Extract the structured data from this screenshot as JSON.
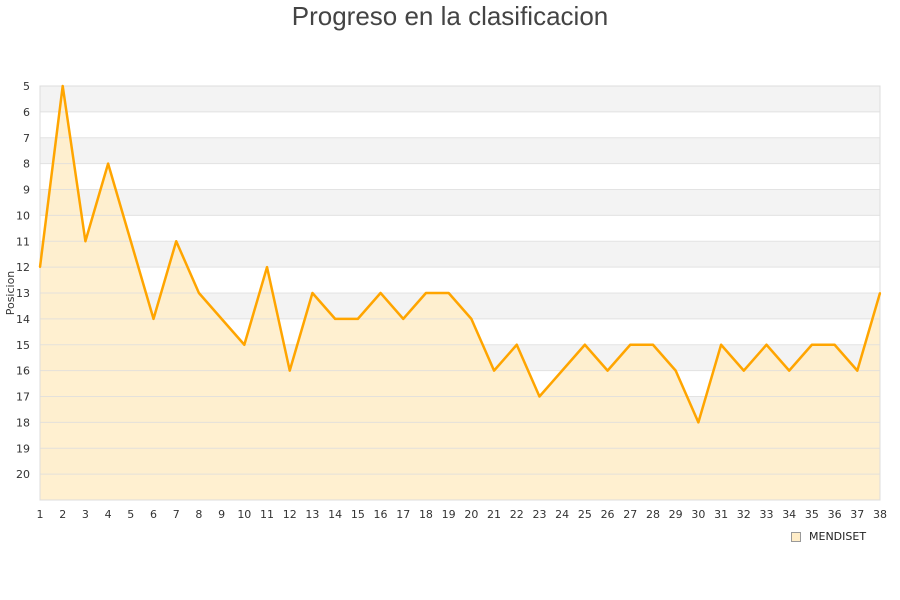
{
  "chart_data": {
    "type": "area",
    "title": "Progreso en la clasificacion",
    "xlabel": "",
    "ylabel": "Posicion",
    "x": [
      1,
      2,
      3,
      4,
      5,
      6,
      7,
      8,
      9,
      10,
      11,
      12,
      13,
      14,
      15,
      16,
      17,
      18,
      19,
      20,
      21,
      22,
      23,
      24,
      25,
      26,
      27,
      28,
      29,
      30,
      31,
      32,
      33,
      34,
      35,
      36,
      37,
      38
    ],
    "y_ticks": [
      5,
      6,
      7,
      8,
      9,
      10,
      11,
      12,
      13,
      14,
      15,
      16,
      17,
      18,
      19,
      20
    ],
    "ylim": [
      5,
      21
    ],
    "y_inverted": true,
    "grid": true,
    "legend_position": "bottom-right",
    "series": [
      {
        "name": "MENDISET",
        "color": "#ffa500",
        "fill": "#ffedc8",
        "values": [
          12,
          5,
          11,
          8,
          11,
          14,
          11,
          13,
          14,
          15,
          12,
          16,
          13,
          14,
          14,
          13,
          14,
          13,
          13,
          14,
          16,
          15,
          17,
          16,
          15,
          16,
          15,
          15,
          16,
          18,
          15,
          16,
          15,
          16,
          15,
          15,
          16,
          13
        ]
      }
    ]
  }
}
